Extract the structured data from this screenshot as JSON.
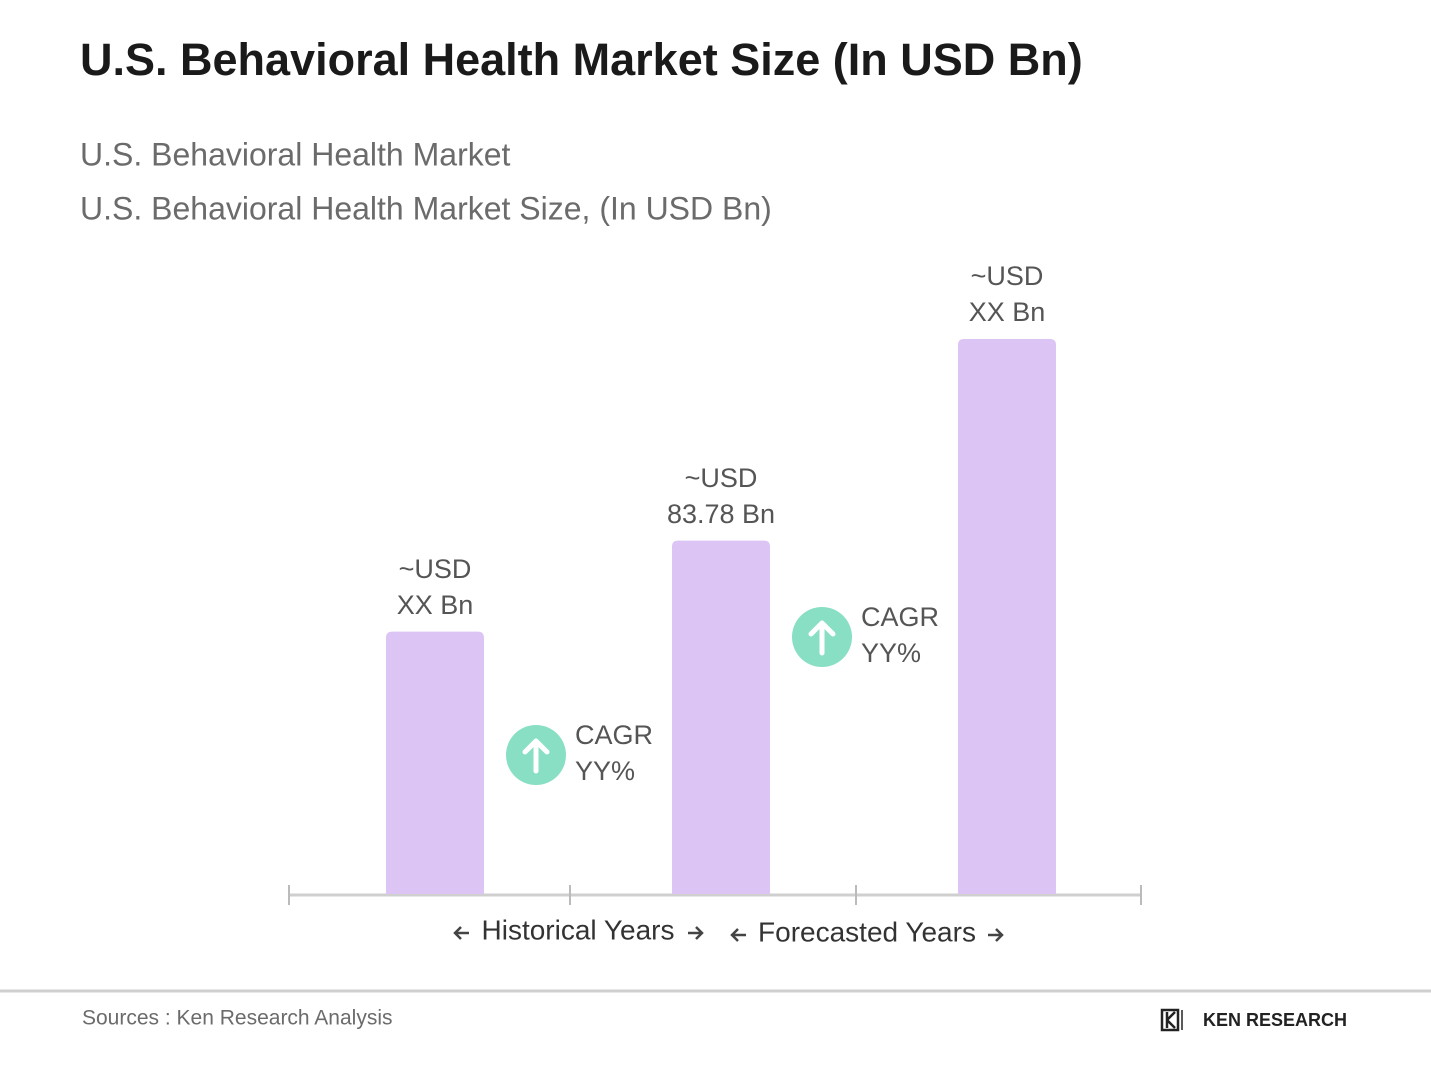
{
  "chart_data": {
    "type": "bar",
    "title": "U.S. Behavioral Health Market Size (In USD Bn)",
    "subtitles": [
      "U.S. Behavioral Health Market",
      "U.S. Behavioral Health Market Size, (In USD Bn)"
    ],
    "categories": [
      null,
      null,
      null
    ],
    "values": [
      62.2,
      83.78,
      131.6
    ],
    "value_labels": [
      [
        "~USD",
        "XX Bn"
      ],
      [
        "~USD",
        "83.78 Bn"
      ],
      [
        "~USD",
        "XX Bn"
      ]
    ],
    "color": "#dcc4f5",
    "annotations": [
      [
        "CAGR",
        "YY%"
      ],
      [
        "CAGR",
        "YY%"
      ]
    ],
    "annotation_color": "#88dfc4",
    "periods": [
      "Historical Years",
      "Forecasted Years"
    ],
    "source": "Sources : Ken Research Analysis",
    "brand": "KEN RESEARCH"
  }
}
